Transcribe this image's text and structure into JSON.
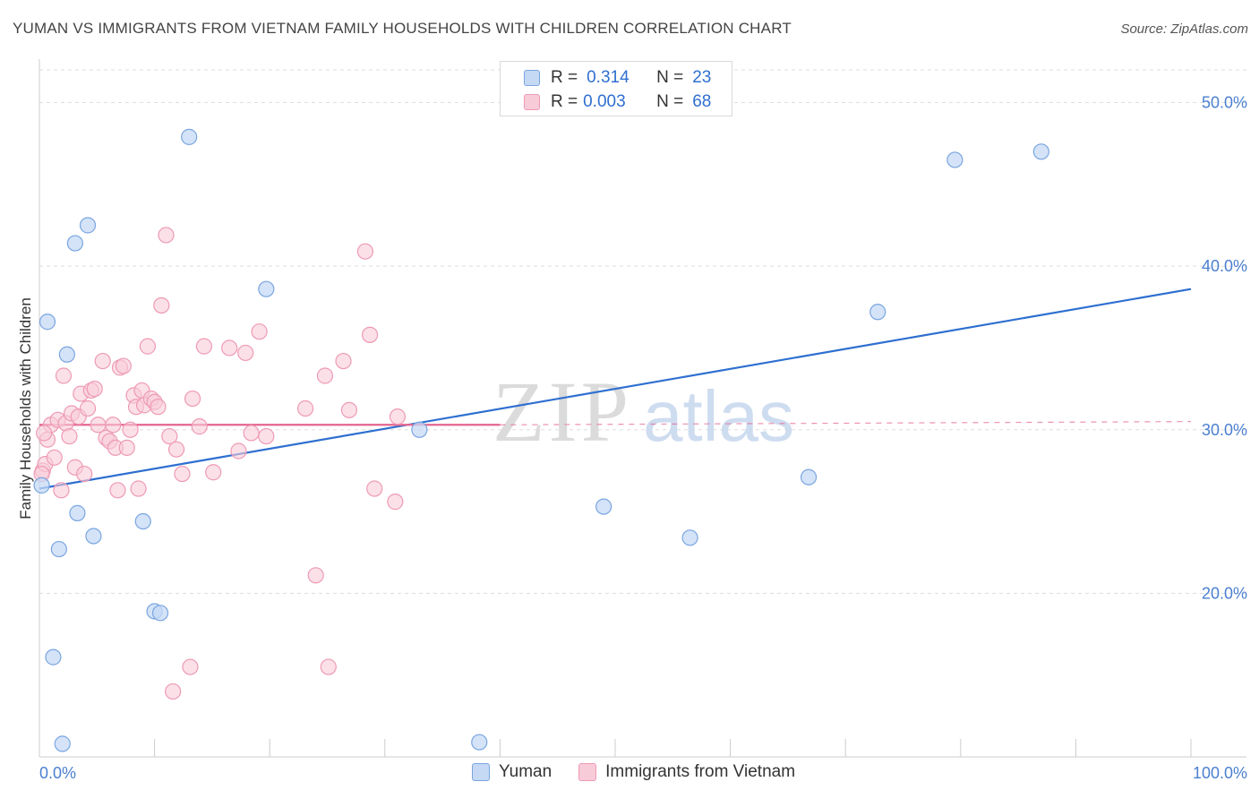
{
  "header": {
    "title": "YUMAN VS IMMIGRANTS FROM VIETNAM FAMILY HOUSEHOLDS WITH CHILDREN CORRELATION CHART",
    "source": "Source: ZipAtlas.com"
  },
  "legend": {
    "rows": [
      {
        "r_label": "R =",
        "r_value": "0.314",
        "n_label": "N =",
        "n_value": "23"
      },
      {
        "r_label": "R =",
        "r_value": "0.003",
        "n_label": "N =",
        "n_value": "68"
      }
    ]
  },
  "bottom_legend": {
    "series1": "Yuman",
    "series2": "Immigrants from Vietnam"
  },
  "watermark": {
    "zip": "ZIP",
    "atlas": "atlas"
  },
  "colors": {
    "blue_fill": "#c5d9f5",
    "blue_stroke": "#7aa5e0",
    "blue_line": "#2e6fd0",
    "pink_fill": "#f8cbd9",
    "pink_stroke": "#ee9ab4",
    "pink_line": "#e5648f",
    "tick_label": "#4a7fd0",
    "grid": "#dddddd"
  },
  "chart_data": {
    "type": "scatter",
    "title": "YUMAN VS IMMIGRANTS FROM VIETNAM FAMILY HOUSEHOLDS WITH CHILDREN CORRELATION CHART",
    "xlabel": "",
    "ylabel": "Family Households with Children",
    "xlim": [
      0,
      100
    ],
    "ylim": [
      10.0,
      52.0
    ],
    "x_tick_labels": [
      "0.0%",
      "100.0%"
    ],
    "y_ticks": [
      20,
      30,
      40,
      50
    ],
    "y_tick_labels": [
      "20.0%",
      "30.0%",
      "40.0%",
      "50.0%"
    ],
    "series": [
      {
        "name": "Yuman",
        "r": 0.314,
        "n": 23,
        "points": [
          [
            0.2,
            26.6
          ],
          [
            0.7,
            36.6
          ],
          [
            1.2,
            16.1
          ],
          [
            1.7,
            22.7
          ],
          [
            2.0,
            10.8
          ],
          [
            2.4,
            34.6
          ],
          [
            3.1,
            41.4
          ],
          [
            3.3,
            24.9
          ],
          [
            4.2,
            42.5
          ],
          [
            4.7,
            23.5
          ],
          [
            9.0,
            24.4
          ],
          [
            10.0,
            18.9
          ],
          [
            10.5,
            18.8
          ],
          [
            13.0,
            47.9
          ],
          [
            19.7,
            38.6
          ],
          [
            33.0,
            30.0
          ],
          [
            38.2,
            10.9
          ],
          [
            49.0,
            25.3
          ],
          [
            56.5,
            23.4
          ],
          [
            66.8,
            27.1
          ],
          [
            72.8,
            37.2
          ],
          [
            79.5,
            46.5
          ],
          [
            87.0,
            47.0
          ]
        ],
        "trend": {
          "x": [
            0,
            100
          ],
          "y": [
            26.4,
            38.6
          ]
        }
      },
      {
        "name": "Immigrants from Vietnam",
        "r": 0.003,
        "n": 68,
        "points": [
          [
            0.3,
            27.5
          ],
          [
            0.5,
            27.9
          ],
          [
            0.7,
            29.4
          ],
          [
            1.0,
            30.3
          ],
          [
            1.3,
            28.3
          ],
          [
            1.6,
            30.6
          ],
          [
            1.9,
            26.3
          ],
          [
            2.1,
            33.3
          ],
          [
            2.3,
            30.4
          ],
          [
            2.6,
            29.6
          ],
          [
            2.8,
            31.0
          ],
          [
            3.1,
            27.7
          ],
          [
            3.4,
            30.8
          ],
          [
            3.6,
            32.2
          ],
          [
            3.9,
            27.3
          ],
          [
            4.2,
            31.3
          ],
          [
            4.5,
            32.4
          ],
          [
            4.8,
            32.5
          ],
          [
            5.1,
            30.3
          ],
          [
            5.5,
            34.2
          ],
          [
            5.8,
            29.5
          ],
          [
            6.1,
            29.3
          ],
          [
            6.4,
            30.3
          ],
          [
            6.6,
            28.9
          ],
          [
            6.8,
            26.3
          ],
          [
            7.0,
            33.8
          ],
          [
            7.3,
            33.9
          ],
          [
            7.6,
            28.9
          ],
          [
            7.9,
            30.0
          ],
          [
            8.2,
            32.1
          ],
          [
            8.4,
            31.4
          ],
          [
            8.6,
            26.4
          ],
          [
            8.9,
            32.4
          ],
          [
            9.1,
            31.5
          ],
          [
            9.4,
            35.1
          ],
          [
            9.7,
            31.9
          ],
          [
            10.0,
            31.7
          ],
          [
            10.3,
            31.4
          ],
          [
            10.6,
            37.6
          ],
          [
            11.3,
            29.6
          ],
          [
            11.6,
            14.0
          ],
          [
            11.9,
            28.8
          ],
          [
            12.4,
            27.3
          ],
          [
            13.1,
            15.5
          ],
          [
            13.3,
            31.9
          ],
          [
            13.9,
            30.2
          ],
          [
            14.3,
            35.1
          ],
          [
            15.1,
            27.4
          ],
          [
            16.5,
            35.0
          ],
          [
            17.3,
            28.7
          ],
          [
            17.9,
            34.7
          ],
          [
            18.4,
            29.8
          ],
          [
            19.1,
            36.0
          ],
          [
            19.7,
            29.6
          ],
          [
            23.1,
            31.3
          ],
          [
            24.0,
            21.1
          ],
          [
            24.8,
            33.3
          ],
          [
            25.1,
            15.5
          ],
          [
            26.4,
            34.2
          ],
          [
            26.9,
            31.2
          ],
          [
            28.7,
            35.8
          ],
          [
            29.1,
            26.4
          ],
          [
            31.1,
            30.8
          ],
          [
            30.9,
            25.6
          ],
          [
            28.3,
            40.9
          ],
          [
            11.0,
            41.9
          ],
          [
            0.2,
            27.3
          ],
          [
            0.4,
            29.8
          ]
        ],
        "trend": {
          "x": [
            0,
            40
          ],
          "y": [
            30.3,
            30.3
          ]
        },
        "trend_dashed": {
          "x": [
            40,
            100
          ],
          "y": [
            30.3,
            30.5
          ]
        }
      }
    ]
  }
}
